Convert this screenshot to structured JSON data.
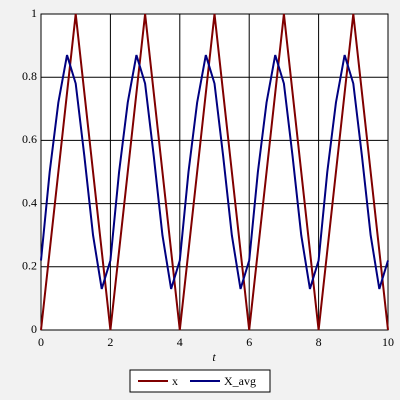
{
  "chart_data": {
    "type": "line",
    "xlabel": "t",
    "xlim": [
      0,
      10
    ],
    "ylim": [
      0,
      1
    ],
    "xticks": [
      0,
      2,
      4,
      6,
      8,
      10
    ],
    "yticks": [
      0,
      0.2,
      0.4,
      0.6,
      0.8,
      1
    ],
    "grid": true,
    "legend": "bottom",
    "series": [
      {
        "name": "x",
        "color": "#800000",
        "x": [
          0,
          1,
          2,
          3,
          4,
          5,
          6,
          7,
          8,
          9,
          10
        ],
        "values": [
          0,
          1,
          0,
          1,
          0,
          1,
          0,
          1,
          0,
          1,
          0
        ]
      },
      {
        "name": "X_avg",
        "color": "#000080",
        "x": [
          0,
          0.25,
          0.5,
          0.75,
          1,
          1.25,
          1.5,
          1.75,
          2,
          2.25,
          2.5,
          2.75,
          3,
          3.25,
          3.5,
          3.75,
          4,
          4.25,
          4.5,
          4.75,
          5,
          5.25,
          5.5,
          5.75,
          6,
          6.25,
          6.5,
          6.75,
          7,
          7.25,
          7.5,
          7.75,
          8,
          8.25,
          8.5,
          8.75,
          9,
          9.25,
          9.5,
          9.75,
          10
        ],
        "values": [
          0.22,
          0.5,
          0.72,
          0.87,
          0.78,
          0.55,
          0.3,
          0.13,
          0.22,
          0.5,
          0.72,
          0.87,
          0.78,
          0.55,
          0.3,
          0.13,
          0.22,
          0.5,
          0.72,
          0.87,
          0.78,
          0.55,
          0.3,
          0.13,
          0.22,
          0.5,
          0.72,
          0.87,
          0.78,
          0.55,
          0.3,
          0.13,
          0.22,
          0.5,
          0.72,
          0.87,
          0.78,
          0.55,
          0.3,
          0.13,
          0.22
        ]
      }
    ]
  }
}
